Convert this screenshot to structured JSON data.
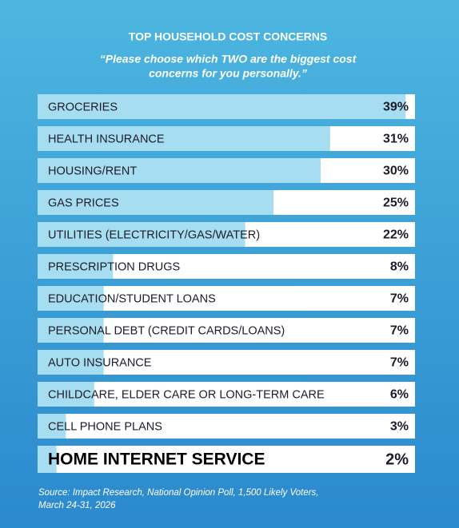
{
  "chart_data": {
    "type": "bar",
    "orientation": "horizontal",
    "title": "TOP HOUSEHOLD COST CONCERNS",
    "subtitle": [
      "“Please choose which TWO are the biggest cost",
      "concerns for you personally.”"
    ],
    "categories": [
      "GROCERIES",
      "HEALTH INSURANCE",
      "HOUSING/RENT",
      "GAS PRICES",
      "UTILITIES (ELECTRICITY/GAS/WATER)",
      "PRESCRIPTION DRUGS",
      "EDUCATION/STUDENT LOANS",
      "PERSONAL DEBT (CREDIT CARDS/LOANS)",
      "AUTO INSURANCE",
      "CHILDCARE, ELDER CARE OR LONG-TERM CARE",
      "CELL PHONE PLANS",
      "HOME INTERNET SERVICE"
    ],
    "values": [
      39,
      31,
      30,
      25,
      22,
      8,
      7,
      7,
      7,
      6,
      3,
      2
    ],
    "value_labels": [
      "39%",
      "31%",
      "30%",
      "25%",
      "22%",
      "8%",
      "7%",
      "7%",
      "7%",
      "6%",
      "3%",
      "2%"
    ],
    "color": "#a7ddf0",
    "xlim": [
      0,
      40
    ],
    "source": [
      "Source: Impact Research, National Opinion Poll, 1,500 Likely Voters,",
      "March 24-31, 2026"
    ]
  }
}
